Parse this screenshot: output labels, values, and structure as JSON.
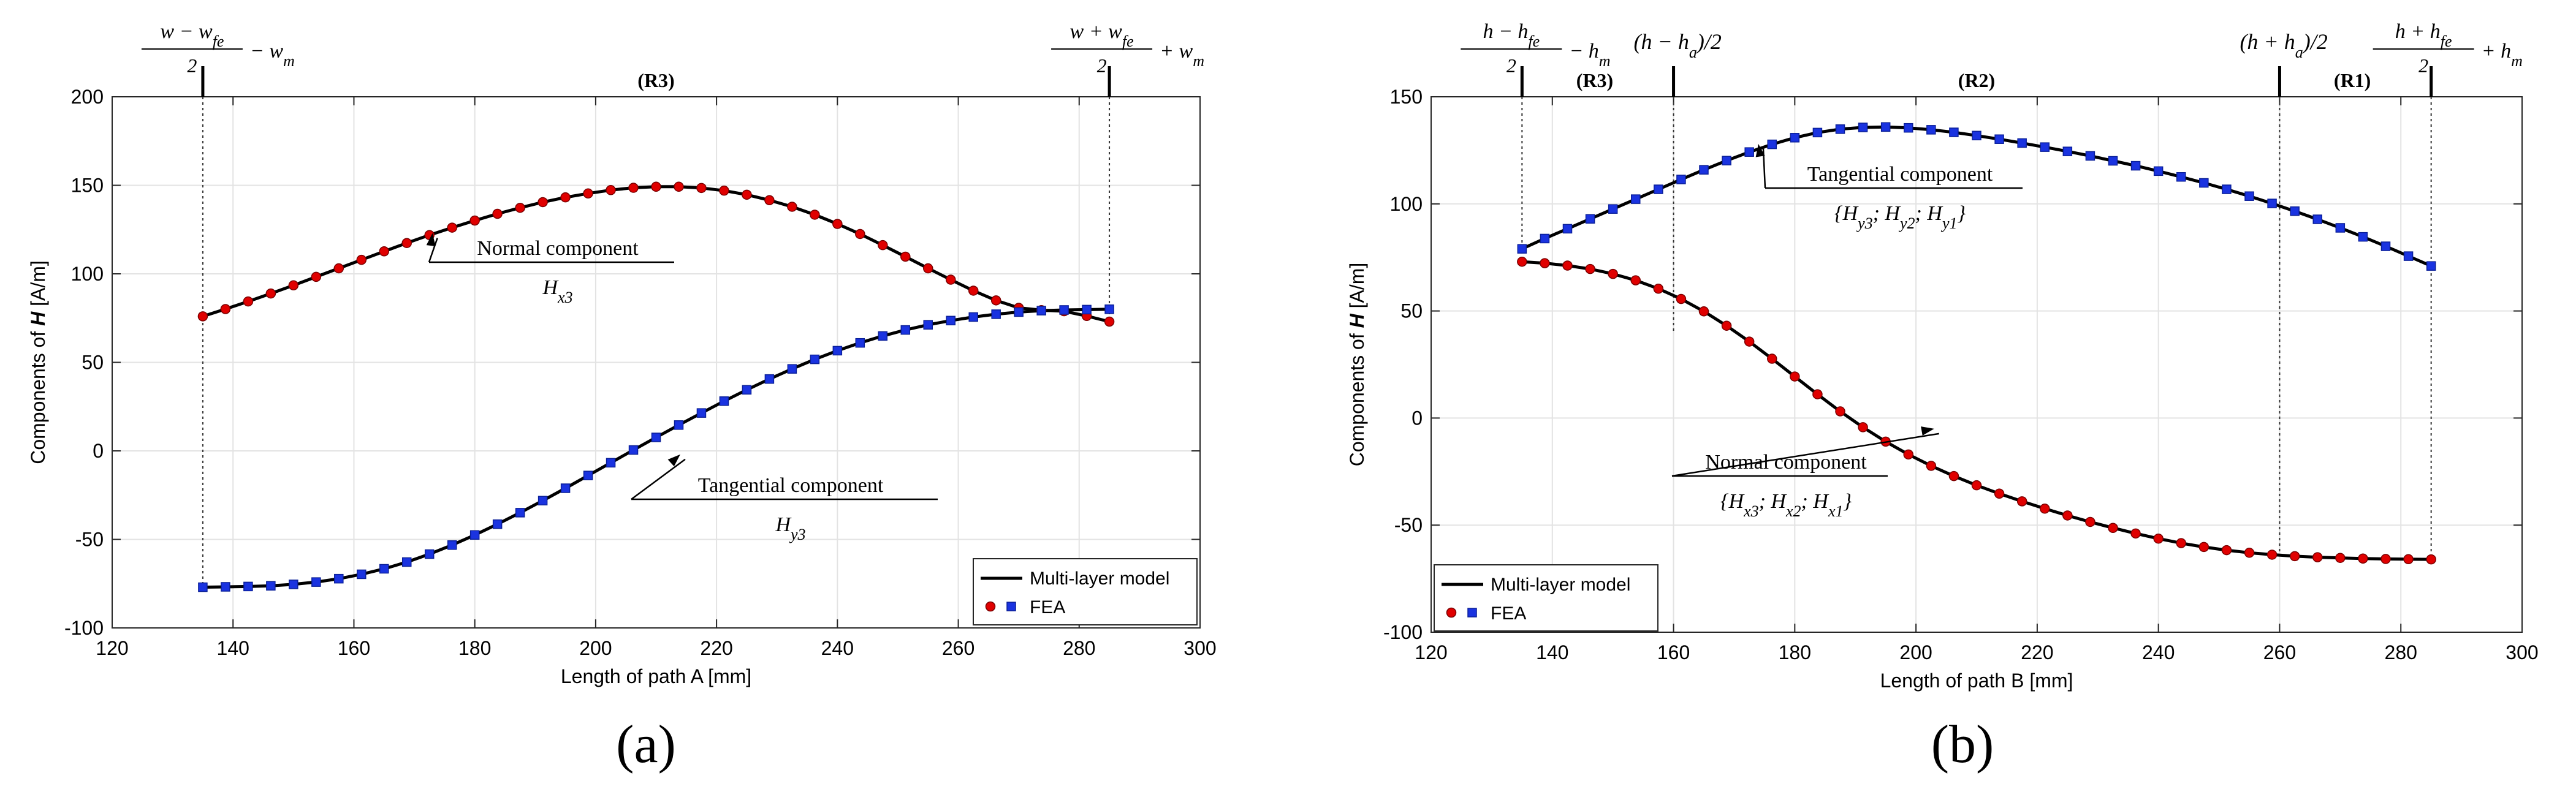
{
  "panels": [
    {
      "caption": "(a)",
      "chart_data": {
        "type": "line",
        "xlabel": "Length of path A [mm]",
        "ylabel_prefix": "Components of ",
        "ylabel_symbol": "H",
        "ylabel_suffix": " [A/m]",
        "xlim": [
          120,
          300
        ],
        "ylim": [
          -100,
          200
        ],
        "xticks": [
          120,
          140,
          160,
          180,
          200,
          220,
          240,
          260,
          280,
          300
        ],
        "yticks": [
          -100,
          -50,
          0,
          50,
          100,
          150,
          200
        ],
        "grid": true,
        "legend": {
          "position": "bottom-right",
          "model_label": "Multi-layer model",
          "fea_label": "FEA"
        },
        "region_labels": [
          {
            "text": "(R3)",
            "x": 210
          }
        ],
        "boundaries": [
          {
            "x": 135
          },
          {
            "x": 285
          }
        ],
        "boundary_labels": [
          {
            "top_numerator": "w − w",
            "top_sub": "fe",
            "top_denominator": "2",
            "top_tail": "− w",
            "top_tail_sub": "m"
          },
          {
            "top_numerator": "w + w",
            "top_sub": "fe",
            "top_denominator": "2",
            "top_tail": "+ w",
            "top_tail_sub": "m"
          }
        ],
        "annotations": [
          {
            "title": "Normal component",
            "symbol": "H",
            "sub": "x3",
            "target": [
              173,
              123
            ]
          },
          {
            "title": "Tangential component",
            "symbol": "H",
            "sub": "y3",
            "target": [
              214,
              -2
            ]
          }
        ],
        "series": [
          {
            "name": "Normal component H_x3",
            "marker": "circle",
            "color": "#e00000",
            "x": [
              135,
              138.75,
              142.5,
              146.25,
              150,
              153.75,
              157.5,
              161.25,
              165,
              168.75,
              172.5,
              176.25,
              180,
              183.75,
              187.5,
              191.25,
              195,
              198.75,
              202.5,
              206.25,
              210,
              213.75,
              217.5,
              221.25,
              225,
              228.75,
              232.5,
              236.25,
              240,
              243.75,
              247.5,
              251.25,
              255,
              258.75,
              262.5,
              266.25,
              270,
              273.75,
              277.5,
              281.25,
              285
            ],
            "values": [
              76,
              80.1,
              84.4,
              88.9,
              93.5,
              98.3,
              103.1,
              107.9,
              112.7,
              117.4,
              121.9,
              126.1,
              130.1,
              133.9,
              137.3,
              140.5,
              143.2,
              145.4,
              147.3,
              148.6,
              149.2,
              149.2,
              148.5,
              147,
              144.7,
              141.6,
              137.9,
              133.4,
              128.2,
              122.5,
              116.2,
              109.7,
              103.1,
              96.7,
              90.5,
              85,
              80.8,
              79.5,
              78.9,
              76.2,
              73
            ]
          },
          {
            "name": "Tangential component H_y3",
            "marker": "square",
            "color": "#1a33e0",
            "x": [
              135,
              138.75,
              142.5,
              146.25,
              150,
              153.75,
              157.5,
              161.25,
              165,
              168.75,
              172.5,
              176.25,
              180,
              183.75,
              187.5,
              191.25,
              195,
              198.75,
              202.5,
              206.25,
              210,
              213.75,
              217.5,
              221.25,
              225,
              228.75,
              232.5,
              236.25,
              240,
              243.75,
              247.5,
              251.25,
              255,
              258.75,
              262.5,
              266.25,
              270,
              273.75,
              277.5,
              281.25,
              285
            ],
            "values": [
              -77,
              -76.8,
              -76.6,
              -76.2,
              -75.4,
              -74.1,
              -72.2,
              -69.7,
              -66.6,
              -62.8,
              -58.3,
              -53.2,
              -47.5,
              -41.4,
              -34.9,
              -28.1,
              -21.1,
              -13.9,
              -6.7,
              0.5,
              7.6,
              14.6,
              21.4,
              28.1,
              34.5,
              40.6,
              46.3,
              51.7,
              56.6,
              61,
              64.9,
              68.3,
              71.2,
              73.6,
              75.6,
              77.2,
              78.4,
              79.2,
              79.6,
              79.8,
              80
            ]
          }
        ]
      }
    },
    {
      "caption": "(b)",
      "chart_data": {
        "type": "line",
        "xlabel": "Length of path B [mm]",
        "ylabel_prefix": "Components of ",
        "ylabel_symbol": "H",
        "ylabel_suffix": " [A/m]",
        "xlim": [
          120,
          300
        ],
        "ylim": [
          -100,
          150
        ],
        "xticks": [
          120,
          140,
          160,
          180,
          200,
          220,
          240,
          260,
          280,
          300
        ],
        "yticks": [
          -100,
          -50,
          0,
          50,
          100,
          150
        ],
        "grid": true,
        "legend": {
          "position": "bottom-left",
          "model_label": "Multi-layer model",
          "fea_label": "FEA"
        },
        "region_labels": [
          {
            "text": "(R3)",
            "x": 147
          },
          {
            "text": "(R2)",
            "x": 210
          },
          {
            "text": "(R1)",
            "x": 272
          }
        ],
        "boundaries": [
          {
            "x": 135
          },
          {
            "x": 160
          },
          {
            "x": 260
          },
          {
            "x": 285
          }
        ],
        "boundary_labels": [
          {
            "top_numerator": "h − h",
            "top_sub": "fe",
            "top_denominator": "2",
            "top_tail": "− h",
            "top_tail_sub": "m"
          },
          {
            "inline_text": "(h − h",
            "inline_sub": "a",
            "inline_tail": ")/2"
          },
          {
            "inline_text": "(h + h",
            "inline_sub": "a",
            "inline_tail": ")/2"
          },
          {
            "top_numerator": "h + h",
            "top_sub": "fe",
            "top_denominator": "2",
            "top_tail": "+ h",
            "top_tail_sub": "m"
          }
        ],
        "annotations": [
          {
            "title": "Tangential component",
            "symbol": "{H",
            "sub": "y3",
            "rest": "; H",
            "sub2": "y2",
            "rest2": "; H",
            "sub3": "y1",
            "close": "}",
            "target": [
              174,
              128
            ]
          },
          {
            "title": "Normal component",
            "symbol": "{H",
            "sub": "x3",
            "rest": "; H",
            "sub2": "x2",
            "rest2": "; H",
            "sub3": "x1",
            "close": "}",
            "target": [
              203,
              -5
            ]
          }
        ],
        "series": [
          {
            "name": "Tangential component {H_y3; H_y2; H_y1}",
            "marker": "square",
            "color": "#1a33e0",
            "x": [
              135,
              138.75,
              142.5,
              146.25,
              150,
              153.75,
              157.5,
              161.25,
              165,
              168.75,
              172.5,
              176.25,
              180,
              183.75,
              187.5,
              191.25,
              195,
              198.75,
              202.5,
              206.25,
              210,
              213.75,
              217.5,
              221.25,
              225,
              228.75,
              232.5,
              236.25,
              240,
              243.75,
              247.5,
              251.25,
              255,
              258.75,
              262.5,
              266.25,
              270,
              273.75,
              277.5,
              281.25,
              285
            ],
            "values": [
              79,
              83.8,
              88.4,
              93,
              97.6,
              102.2,
              106.8,
              111.4,
              115.9,
              120.2,
              124.2,
              127.8,
              130.9,
              133.3,
              134.9,
              135.7,
              135.9,
              135.5,
              134.6,
              133.4,
              131.9,
              130.2,
              128.4,
              126.5,
              124.5,
              122.4,
              120.1,
              117.8,
              115.3,
              112.6,
              109.8,
              106.8,
              103.6,
              100.2,
              96.6,
              92.8,
              88.8,
              84.6,
              80.2,
              75.6,
              71
            ]
          },
          {
            "name": "Normal component {H_x3; H_x2; H_x1}",
            "marker": "circle",
            "color": "#e00000",
            "x": [
              135,
              138.75,
              142.5,
              146.25,
              150,
              153.75,
              157.5,
              161.25,
              165,
              168.75,
              172.5,
              176.25,
              180,
              183.75,
              187.5,
              191.25,
              195,
              198.75,
              202.5,
              206.25,
              210,
              213.75,
              217.5,
              221.25,
              225,
              228.75,
              232.5,
              236.25,
              240,
              243.75,
              247.5,
              251.25,
              255,
              258.75,
              262.5,
              266.25,
              270,
              273.75,
              277.5,
              281.25,
              285
            ],
            "values": [
              73,
              72.3,
              71.2,
              69.6,
              67.3,
              64.3,
              60.4,
              55.6,
              49.8,
              43.1,
              35.7,
              27.7,
              19.4,
              11.1,
              3.1,
              -4.3,
              -11,
              -17,
              -22.3,
              -27.1,
              -31.4,
              -35.3,
              -38.9,
              -42.3,
              -45.5,
              -48.5,
              -51.3,
              -53.9,
              -56.3,
              -58.4,
              -60.2,
              -61.7,
              -62.9,
              -63.8,
              -64.5,
              -65,
              -65.3,
              -65.6,
              -65.8,
              -65.9,
              -66
            ]
          }
        ]
      }
    }
  ]
}
